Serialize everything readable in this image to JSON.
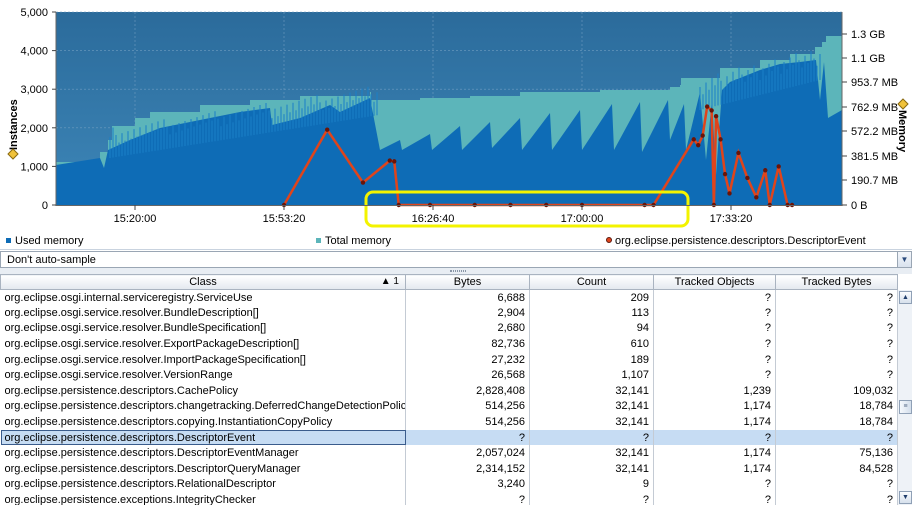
{
  "chart": {
    "left_axis_title": "Instances",
    "right_axis_title": "Memory",
    "left_ticks": [
      "5,000",
      "4,000",
      "3,000",
      "2,000",
      "1,000",
      "0"
    ],
    "right_ticks": [
      "1.3 GB",
      "1.1 GB",
      "953.7 MB",
      "762.9 MB",
      "572.2 MB",
      "381.5 MB",
      "190.7 MB",
      "0 B"
    ],
    "x_ticks": [
      "15:20:00",
      "15:53:20",
      "16:26:40",
      "17:00:00",
      "17:33:20"
    ],
    "colors": {
      "plot_bg": "#2e6f9f",
      "total_memory": "#5fb8bc",
      "used_memory": "#0f6db5",
      "series": "#e0441b",
      "highlight": "#f5f500"
    }
  },
  "chart_data": {
    "type": "area",
    "xlabel": "",
    "ylabel": "Instances",
    "y2label": "Memory",
    "ylim": [
      0,
      5000
    ],
    "x_tick_labels": [
      "15:20:00",
      "15:53:20",
      "16:26:40",
      "17:00:00",
      "17:33:20"
    ],
    "series": [
      {
        "name": "Used memory",
        "type": "area",
        "axis": "right"
      },
      {
        "name": "Total memory",
        "type": "area",
        "axis": "right"
      },
      {
        "name": "org.eclipse.persistence.descriptors.DescriptorEvent",
        "type": "line",
        "axis": "left",
        "points": [
          [
            "15:53:20",
            0
          ],
          [
            "16:03",
            1950
          ],
          [
            "16:11",
            580
          ],
          [
            "16:17",
            1150
          ],
          [
            "16:18",
            1130
          ],
          [
            "16:19",
            0
          ],
          [
            "16:26",
            0
          ],
          [
            "16:36",
            0
          ],
          [
            "16:44",
            0
          ],
          [
            "16:52",
            0
          ],
          [
            "17:00",
            0
          ],
          [
            "17:14",
            0
          ],
          [
            "17:16",
            0
          ],
          [
            "17:25",
            1700
          ],
          [
            "17:26",
            1550
          ],
          [
            "17:27",
            1800
          ],
          [
            "17:28",
            2550
          ],
          [
            "17:29",
            2450
          ],
          [
            "17:29:30",
            0
          ],
          [
            "17:30",
            2300
          ],
          [
            "17:31",
            1700
          ],
          [
            "17:32",
            800
          ],
          [
            "17:33",
            300
          ],
          [
            "17:35",
            1350
          ],
          [
            "17:37",
            700
          ],
          [
            "17:39",
            200
          ],
          [
            "17:41",
            900
          ],
          [
            "17:42",
            0
          ],
          [
            "17:44",
            1000
          ],
          [
            "17:46",
            0
          ],
          [
            "17:47",
            0
          ]
        ]
      }
    ]
  },
  "legend": {
    "used": "Used memory",
    "total": "Total memory",
    "series": "org.eclipse.persistence.descriptors.DescriptorEvent"
  },
  "sample_mode": "Don't auto-sample",
  "table": {
    "columns": [
      "Class",
      "Bytes",
      "Count",
      "Tracked Objects",
      "Tracked Bytes"
    ],
    "sort_indicator": "▲ 1",
    "rows": [
      [
        "org.eclipse.osgi.internal.serviceregistry.ServiceUse",
        "6,688",
        "209",
        "?",
        "?"
      ],
      [
        "org.eclipse.osgi.service.resolver.BundleDescription[]",
        "2,904",
        "113",
        "?",
        "?"
      ],
      [
        "org.eclipse.osgi.service.resolver.BundleSpecification[]",
        "2,680",
        "94",
        "?",
        "?"
      ],
      [
        "org.eclipse.osgi.service.resolver.ExportPackageDescription[]",
        "82,736",
        "610",
        "?",
        "?"
      ],
      [
        "org.eclipse.osgi.service.resolver.ImportPackageSpecification[]",
        "27,232",
        "189",
        "?",
        "?"
      ],
      [
        "org.eclipse.osgi.service.resolver.VersionRange",
        "26,568",
        "1,107",
        "?",
        "?"
      ],
      [
        "org.eclipse.persistence.descriptors.CachePolicy",
        "2,828,408",
        "32,141",
        "1,239",
        "109,032"
      ],
      [
        "org.eclipse.persistence.descriptors.changetracking.DeferredChangeDetectionPolicy",
        "514,256",
        "32,141",
        "1,174",
        "18,784"
      ],
      [
        "org.eclipse.persistence.descriptors.copying.InstantiationCopyPolicy",
        "514,256",
        "32,141",
        "1,174",
        "18,784"
      ],
      [
        "org.eclipse.persistence.descriptors.DescriptorEvent",
        "?",
        "?",
        "?",
        "?"
      ],
      [
        "org.eclipse.persistence.descriptors.DescriptorEventManager",
        "2,057,024",
        "32,141",
        "1,174",
        "75,136"
      ],
      [
        "org.eclipse.persistence.descriptors.DescriptorQueryManager",
        "2,314,152",
        "32,141",
        "1,174",
        "84,528"
      ],
      [
        "org.eclipse.persistence.descriptors.RelationalDescriptor",
        "3,240",
        "9",
        "?",
        "?"
      ],
      [
        "org.eclipse.persistence.exceptions.IntegrityChecker",
        "?",
        "?",
        "?",
        "?"
      ]
    ],
    "selected_row": 9
  },
  "icons": {
    "left_axis_marker": "diamond-icon",
    "right_axis_marker": "diamond-icon",
    "dropdown": "chevron-down-icon",
    "scroll_up": "arrow-up-icon",
    "scroll_down": "arrow-down-icon",
    "scroll_thumb": "grip-icon"
  }
}
